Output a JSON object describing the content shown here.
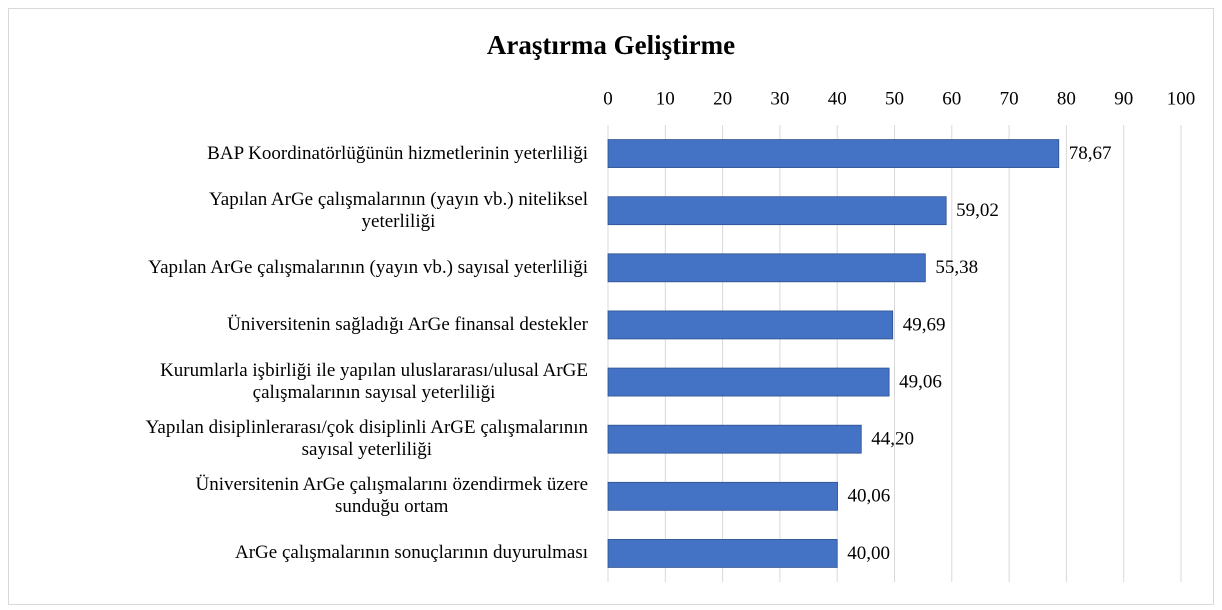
{
  "chart_data": {
    "type": "bar",
    "orientation": "horizontal",
    "title": "Araştırma Geliştirme",
    "categories": [
      "BAP Koordinatörlüğünün hizmetlerinin yeterliliği",
      "Yapılan ArGe çalışmalarının (yayın vb.) niteliksel\nyeterliliği",
      "Yapılan ArGe çalışmalarının (yayın vb.) sayısal yeterliliği",
      "Üniversitenin sağladığı ArGe finansal destekler",
      "Kurumlarla işbirliği ile yapılan uluslararası/ulusal ArGE\nçalışmalarının sayısal yeterliliği",
      "Yapılan disiplinlerarası/çok disiplinli ArGE çalışmalarının\nsayısal yeterliliği",
      "Üniversitenin ArGe çalışmalarını özendirmek üzere\nsunduğu ortam",
      "ArGe çalışmalarının sonuçlarının duyurulması"
    ],
    "values": [
      78.67,
      59.02,
      55.38,
      49.69,
      49.06,
      44.2,
      40.06,
      40.0
    ],
    "value_labels": [
      "78,67",
      "59,02",
      "55,38",
      "49,69",
      "49,06",
      "44,20",
      "40,06",
      "40,00"
    ],
    "color": "#4472c4",
    "xlim": [
      0,
      100
    ],
    "xticks": [
      0,
      10,
      20,
      30,
      40,
      50,
      60,
      70,
      80,
      90,
      100
    ],
    "grid": true
  }
}
